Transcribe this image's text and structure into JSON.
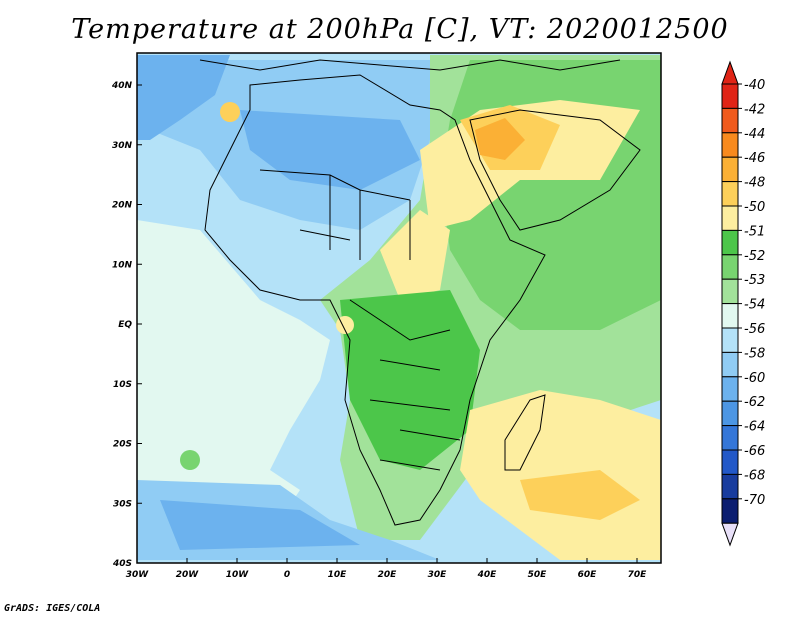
{
  "title": "Temperature at 200hPa [C], VT: 2020012500",
  "credit": "GrADS: IGES/COLA",
  "lon_ticks": [
    "30W",
    "20W",
    "10W",
    "0",
    "10E",
    "20E",
    "30E",
    "40E",
    "50E",
    "60E",
    "70E"
  ],
  "lat_ticks": [
    "40N",
    "30N",
    "20N",
    "10N",
    "EQ",
    "10S",
    "20S",
    "30S",
    "40S"
  ],
  "colorbar": {
    "labels": [
      "-40",
      "-42",
      "-44",
      "-46",
      "-48",
      "-50",
      "-51",
      "-52",
      "-53",
      "-54",
      "-56",
      "-58",
      "-60",
      "-62",
      "-64",
      "-66",
      "-68",
      "-70"
    ],
    "colors": [
      "#e02416",
      "#f05a1c",
      "#f88a1e",
      "#fbb035",
      "#fdd05a",
      "#fdeea0",
      "#4cc64a",
      "#78d470",
      "#a2e29a",
      "#e2f8f0",
      "#b4e2f8",
      "#90ccf4",
      "#6cb2ee",
      "#4c96e4",
      "#3476d8",
      "#2258c8",
      "#183c9e",
      "#0c1e70"
    ],
    "top_arrow_color": "#e02416",
    "bottom_arrow_color": "#e8e0f8"
  },
  "colors": {
    "ocean_west": "#e2f8f0",
    "sahara_blue": "#6cb2ee",
    "coastline": "#000000"
  }
}
